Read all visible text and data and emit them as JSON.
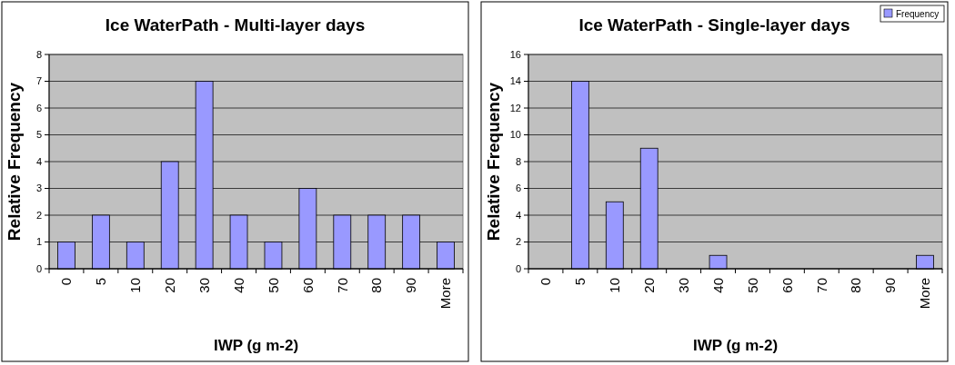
{
  "chart_data": [
    {
      "type": "bar",
      "title": "Ice WaterPath - Multi-layer days",
      "xlabel": "IWP (g m-2)",
      "ylabel": "Relative Frequency",
      "categories": [
        "0",
        "5",
        "10",
        "20",
        "30",
        "40",
        "50",
        "60",
        "70",
        "80",
        "90",
        "More"
      ],
      "series": [
        {
          "color": "#9999ff",
          "values": [
            1,
            2,
            1,
            4,
            7,
            2,
            1,
            3,
            2,
            2,
            2,
            1
          ]
        }
      ],
      "ylim": [
        0,
        8
      ],
      "yticks": [
        0,
        1,
        2,
        3,
        4,
        5,
        6,
        7,
        8
      ],
      "grid": "y",
      "legend": false
    },
    {
      "type": "bar",
      "title": "Ice WaterPath - Single-layer days",
      "xlabel": "IWP (g m-2)",
      "ylabel": "Relative Frequency",
      "categories": [
        "0",
        "5",
        "10",
        "20",
        "30",
        "40",
        "50",
        "60",
        "70",
        "80",
        "90",
        "More"
      ],
      "series": [
        {
          "name": "Frequency",
          "color": "#9999ff",
          "values": [
            0,
            14,
            5,
            9,
            0,
            1,
            0,
            0,
            0,
            0,
            0,
            1
          ]
        }
      ],
      "ylim": [
        0,
        16
      ],
      "yticks": [
        0,
        2,
        4,
        6,
        8,
        10,
        12,
        14,
        16
      ],
      "grid": "y",
      "legend": "top right"
    }
  ]
}
